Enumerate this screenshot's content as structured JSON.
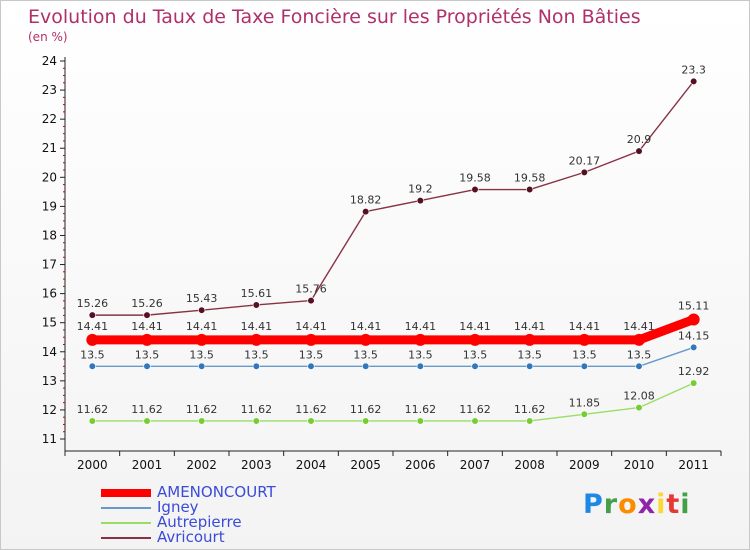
{
  "chart_data": {
    "type": "line",
    "title": "Evolution du Taux de Taxe Foncière sur les Propriétés Non Bâties",
    "subtitle": "(en %)",
    "x": [
      "2000",
      "2001",
      "2002",
      "2003",
      "2004",
      "2005",
      "2006",
      "2007",
      "2008",
      "2009",
      "2010",
      "2011"
    ],
    "ylim": [
      11,
      24
    ],
    "yticks": [
      11,
      12,
      13,
      14,
      15,
      16,
      17,
      18,
      19,
      20,
      21,
      22,
      23,
      24
    ],
    "series": [
      {
        "name": "AMENONCOURT",
        "color": "#ff0000",
        "marker": "#ff0000",
        "values": [
          14.41,
          14.41,
          14.41,
          14.41,
          14.41,
          14.41,
          14.41,
          14.41,
          14.41,
          14.41,
          14.41,
          15.11
        ],
        "labels": [
          "14.41",
          "14.41",
          "14.41",
          "14.41",
          "14.41",
          "14.41",
          "14.41",
          "14.41",
          "14.41",
          "14.41",
          "14.41",
          "15.11"
        ]
      },
      {
        "name": "Igney",
        "color": "#6699cc",
        "marker": "#3377bb",
        "values": [
          13.5,
          13.5,
          13.5,
          13.5,
          13.5,
          13.5,
          13.5,
          13.5,
          13.5,
          13.5,
          13.5,
          14.15
        ],
        "labels": [
          "13.5",
          "13.5",
          "13.5",
          "13.5",
          "13.5",
          "13.5",
          "13.5",
          "13.5",
          "13.5",
          "13.5",
          "13.5",
          "14.15"
        ]
      },
      {
        "name": "Autrepierre",
        "color": "#99dd66",
        "marker": "#77cc33",
        "values": [
          11.62,
          11.62,
          11.62,
          11.62,
          11.62,
          11.62,
          11.62,
          11.62,
          11.62,
          11.85,
          12.08,
          12.92
        ],
        "labels": [
          "11.62",
          "11.62",
          "11.62",
          "11.62",
          "11.62",
          "11.62",
          "11.62",
          "11.62",
          "11.62",
          "11.85",
          "12.08",
          "12.92"
        ]
      },
      {
        "name": "Avricourt",
        "color": "#883344",
        "marker": "#551122",
        "values": [
          15.26,
          15.26,
          15.43,
          15.61,
          15.76,
          18.82,
          19.2,
          19.58,
          19.58,
          20.17,
          20.9,
          23.3
        ],
        "labels": [
          "15.26",
          "15.26",
          "15.43",
          "15.61",
          "15.76",
          "18.82",
          "19.2",
          "19.58",
          "19.58",
          "20.17",
          "20.9",
          "23.3"
        ]
      }
    ]
  },
  "brand": {
    "letters": [
      "P",
      "r",
      "o",
      "x",
      "i",
      "t",
      "i"
    ],
    "colors": [
      "#1e88e5",
      "#43a047",
      "#fb8c00",
      "#8e24aa",
      "#fdd835",
      "#e53935",
      "#43a047"
    ]
  }
}
